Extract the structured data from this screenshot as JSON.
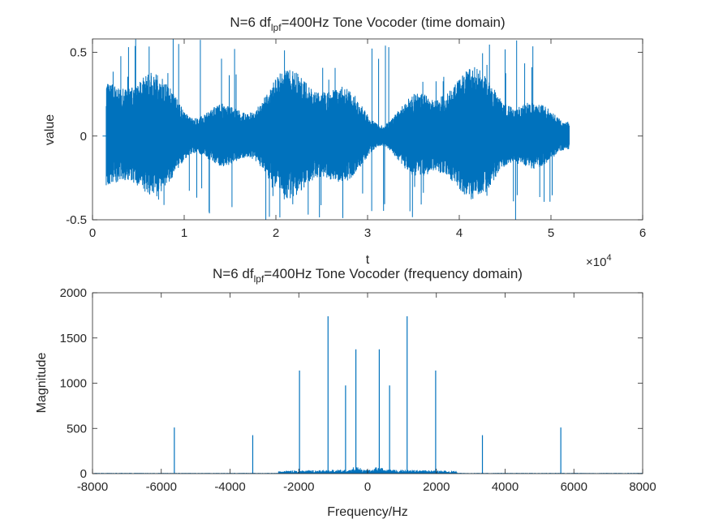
{
  "colors": {
    "series": "#0072BD",
    "axis": "#262626",
    "background": "#ffffff"
  },
  "chart_data": [
    {
      "type": "line",
      "title_parts": {
        "pre": "N=6 df",
        "sub": "lpf",
        "post": "=400Hz Tone Vocoder (time domain)"
      },
      "xlabel": "t",
      "ylabel": "value",
      "xlim": [
        0,
        60000
      ],
      "ylim": [
        -0.5,
        0.58
      ],
      "x_ticks": [
        0,
        10000,
        20000,
        30000,
        40000,
        50000,
        60000
      ],
      "x_tick_labels": [
        "0",
        "1",
        "2",
        "3",
        "4",
        "5",
        "6"
      ],
      "y_ticks": [
        -0.5,
        0,
        0.5
      ],
      "y_tick_labels": [
        "-0.5",
        "0",
        "0.5"
      ],
      "x_exponent": {
        "base": "×10",
        "power": "4"
      },
      "grid": false,
      "signal": {
        "start": 1500,
        "end": 52000,
        "peak_max": 0.58,
        "peak_min": -0.5,
        "typical_max": 0.32,
        "typical_min": -0.3
      }
    },
    {
      "type": "line",
      "title_parts": {
        "pre": "N=6 df",
        "sub": "lpf",
        "post": "=400Hz Tone Vocoder (frequency domain)"
      },
      "xlabel": "Frequency/Hz",
      "ylabel": "Magnitude",
      "xlim": [
        -8000,
        8000
      ],
      "ylim": [
        0,
        2000
      ],
      "x_ticks": [
        -8000,
        -6000,
        -4000,
        -2000,
        0,
        2000,
        4000,
        6000,
        8000
      ],
      "x_tick_labels": [
        "-8000",
        "-6000",
        "-4000",
        "-2000",
        "0",
        "2000",
        "4000",
        "6000",
        "8000"
      ],
      "y_ticks": [
        0,
        500,
        1000,
        1500,
        2000
      ],
      "y_tick_labels": [
        "0",
        "500",
        "1000",
        "1500",
        "2000"
      ],
      "grid": false,
      "peaks": [
        {
          "x": -5620,
          "y": 510
        },
        {
          "x": -3340,
          "y": 425
        },
        {
          "x": -1980,
          "y": 1140
        },
        {
          "x": -1150,
          "y": 1740
        },
        {
          "x": -640,
          "y": 975
        },
        {
          "x": -340,
          "y": 1375
        },
        {
          "x": 340,
          "y": 1375
        },
        {
          "x": 640,
          "y": 975
        },
        {
          "x": 1150,
          "y": 1740
        },
        {
          "x": 1980,
          "y": 1140
        },
        {
          "x": 3340,
          "y": 425
        },
        {
          "x": 5620,
          "y": 510
        }
      ]
    }
  ]
}
